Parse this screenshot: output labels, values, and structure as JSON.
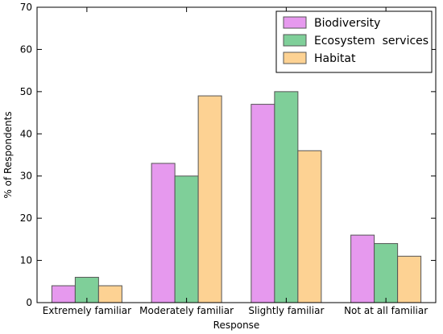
{
  "chart_data": {
    "type": "bar",
    "title": "",
    "xlabel": "Response",
    "ylabel": "% of Respondents",
    "ylim": [
      0,
      70
    ],
    "yticks": [
      0,
      10,
      20,
      30,
      40,
      50,
      60,
      70
    ],
    "categories": [
      "Extremely familiar",
      "Moderately familiar",
      "Slightly familiar",
      "Not at all familiar"
    ],
    "series": [
      {
        "name": "Biodiversity",
        "color": "#e699ee",
        "values": [
          4,
          33,
          47,
          16
        ]
      },
      {
        "name": "Ecosystem  services",
        "color": "#7fcf99",
        "values": [
          6,
          30,
          50,
          14
        ]
      },
      {
        "name": "Habitat",
        "color": "#fdd293",
        "values": [
          4,
          49,
          36,
          11
        ]
      }
    ],
    "legend": "top-right",
    "grid": false
  }
}
